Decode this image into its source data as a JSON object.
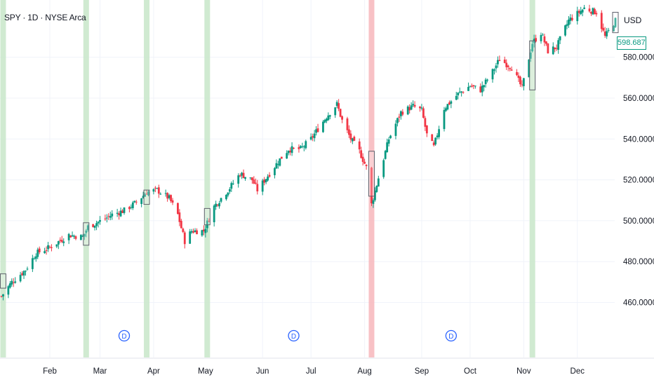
{
  "header": {
    "title": "SPY · 1D · NYSE Arca",
    "currency": "USD",
    "last_price": "598.68765"
  },
  "colors": {
    "up": "#089981",
    "down": "#f23645",
    "green_band": "#c8e6c9",
    "red_band": "#f7b6bb",
    "marker": "#2962ff",
    "grid": "#f0f3fa",
    "text": "#131722"
  },
  "chart_data": {
    "type": "candlestick",
    "title": "SPY · 1D · NYSE Arca",
    "xlabel": "",
    "ylabel": "",
    "ylim": [
      442,
      612
    ],
    "y_ticks": [
      460,
      480,
      500,
      520,
      540,
      560,
      580
    ],
    "y_tick_labels": [
      "460.00000",
      "480.00000",
      "500.00000",
      "520.00000",
      "540.00000",
      "560.00000",
      "580.00000"
    ],
    "x_ticks": [
      {
        "date": "2024-02-01",
        "label": "Feb"
      },
      {
        "date": "2024-03-01",
        "label": "Mar"
      },
      {
        "date": "2024-04-01",
        "label": "Apr"
      },
      {
        "date": "2024-05-01",
        "label": "May"
      },
      {
        "date": "2024-06-03",
        "label": "Jun"
      },
      {
        "date": "2024-07-01",
        "label": "Jul"
      },
      {
        "date": "2024-08-01",
        "label": "Aug"
      },
      {
        "date": "2024-09-03",
        "label": "Sep"
      },
      {
        "date": "2024-10-01",
        "label": "Oct"
      },
      {
        "date": "2024-11-01",
        "label": "Nov"
      },
      {
        "date": "2024-12-02",
        "label": "Dec"
      }
    ],
    "x_range": [
      "2024-01-04",
      "2024-12-24"
    ],
    "close_path": [
      [
        "2024-01-04",
        463
      ],
      [
        "2024-01-10",
        470
      ],
      [
        "2024-01-18",
        476
      ],
      [
        "2024-01-24",
        484
      ],
      [
        "2024-02-01",
        487
      ],
      [
        "2024-02-12",
        493
      ],
      [
        "2024-02-20",
        492
      ],
      [
        "2024-02-23",
        497
      ],
      [
        "2024-03-04",
        501
      ],
      [
        "2024-03-08",
        503
      ],
      [
        "2024-03-15",
        505
      ],
      [
        "2024-03-22",
        509
      ],
      [
        "2024-03-28",
        514
      ],
      [
        "2024-04-03",
        515
      ],
      [
        "2024-04-10",
        511
      ],
      [
        "2024-04-15",
        503
      ],
      [
        "2024-04-19",
        490
      ],
      [
        "2024-04-23",
        495
      ],
      [
        "2024-04-30",
        495
      ],
      [
        "2024-05-06",
        507
      ],
      [
        "2024-05-15",
        516
      ],
      [
        "2024-05-21",
        523
      ],
      [
        "2024-05-28",
        520
      ],
      [
        "2024-05-31",
        515
      ],
      [
        "2024-06-06",
        522
      ],
      [
        "2024-06-13",
        530
      ],
      [
        "2024-06-18",
        535
      ],
      [
        "2024-06-25",
        535
      ],
      [
        "2024-07-01",
        540
      ],
      [
        "2024-07-10",
        551
      ],
      [
        "2024-07-16",
        557
      ],
      [
        "2024-07-19",
        549
      ],
      [
        "2024-07-24",
        540
      ],
      [
        "2024-07-29",
        534
      ],
      [
        "2024-08-02",
        526
      ],
      [
        "2024-08-05",
        508
      ],
      [
        "2024-08-09",
        521
      ],
      [
        "2024-08-15",
        540
      ],
      [
        "2024-08-22",
        553
      ],
      [
        "2024-08-29",
        556
      ],
      [
        "2024-09-03",
        554
      ],
      [
        "2024-09-06",
        542
      ],
      [
        "2024-09-10",
        536
      ],
      [
        "2024-09-16",
        555
      ],
      [
        "2024-09-24",
        562
      ],
      [
        "2024-10-01",
        566
      ],
      [
        "2024-10-07",
        564
      ],
      [
        "2024-10-14",
        573
      ],
      [
        "2024-10-18",
        579
      ],
      [
        "2024-10-25",
        575
      ],
      [
        "2024-10-31",
        565
      ],
      [
        "2024-11-06",
        587
      ],
      [
        "2024-11-11",
        592
      ],
      [
        "2024-11-15",
        583
      ],
      [
        "2024-11-20",
        585
      ],
      [
        "2024-11-27",
        598
      ],
      [
        "2024-12-06",
        604
      ],
      [
        "2024-12-13",
        602
      ],
      [
        "2024-12-18",
        590
      ],
      [
        "2024-12-24",
        598
      ]
    ],
    "highlight_bands": [
      {
        "date": "2024-01-05",
        "color": "green"
      },
      {
        "date": "2024-02-22",
        "color": "green"
      },
      {
        "date": "2024-03-28",
        "color": "green"
      },
      {
        "date": "2024-05-02",
        "color": "green"
      },
      {
        "date": "2024-08-05",
        "color": "red"
      },
      {
        "date": "2024-11-06",
        "color": "green"
      }
    ],
    "range_boxes": [
      {
        "date": "2024-01-05",
        "low": 467,
        "high": 474
      },
      {
        "date": "2024-02-22",
        "low": 488,
        "high": 499
      },
      {
        "date": "2024-03-28",
        "low": 508,
        "high": 515
      },
      {
        "date": "2024-05-02",
        "low": 498,
        "high": 506
      },
      {
        "date": "2024-08-05",
        "low": 512,
        "high": 534
      },
      {
        "date": "2024-11-06",
        "low": 564,
        "high": 588
      },
      {
        "date": "2024-12-24",
        "low": 592,
        "high": 602
      }
    ],
    "dividend_markers": [
      {
        "date": "2024-03-15",
        "label": "D"
      },
      {
        "date": "2024-06-21",
        "label": "D"
      },
      {
        "date": "2024-09-20",
        "label": "D"
      }
    ]
  }
}
